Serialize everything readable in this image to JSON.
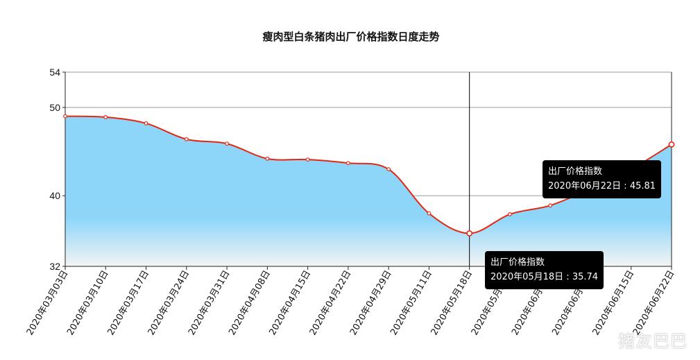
{
  "chart_data": {
    "type": "area",
    "title": "瘦肉型白条猪肉出厂价格指数日度走势",
    "xlabel": "",
    "ylabel": "",
    "ylim": [
      32,
      54
    ],
    "yticks": [
      32,
      40,
      50,
      54
    ],
    "x": [
      "2020年03月03日",
      "2020年03月10日",
      "2020年03月17日",
      "2020年03月24日",
      "2020年03月31日",
      "2020年04月08日",
      "2020年04月15日",
      "2020年04月22日",
      "2020年04月29日",
      "2020年05月11日",
      "2020年05月18日",
      "2020年05月25日",
      "2020年06月01日",
      "2020年06月08日",
      "2020年06月15日",
      "2020年06月22日"
    ],
    "series": [
      {
        "name": "",
        "values": [
          49.0,
          48.9,
          48.2,
          46.4,
          45.9,
          44.2,
          44.1,
          43.7,
          43.0,
          38.0,
          35.74,
          37.9,
          38.9,
          40.8,
          43.0,
          45.81
        ]
      }
    ],
    "grid": true,
    "legend": "none",
    "line_color": "#e8250f",
    "fill_color": "#8dd6fa",
    "crosshair_x": "2020年05月18日",
    "tooltips": [
      {
        "series": "出厂价格指数",
        "text": "2020年05月18日 : 35.74",
        "anchor": "2020年05月18日"
      },
      {
        "series": "出厂价格指数",
        "text": "2020年06月22日 : 45.81",
        "anchor": "2020年06月22日"
      }
    ]
  },
  "watermark": "猪友巴巴"
}
